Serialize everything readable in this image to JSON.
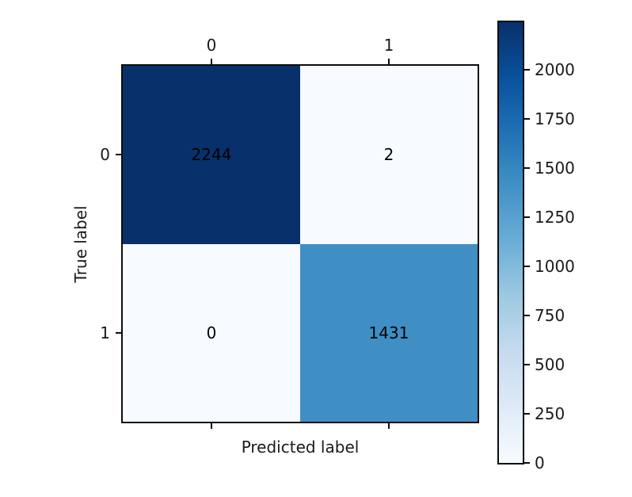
{
  "chart_data": {
    "type": "heatmap",
    "subtype": "confusion-matrix",
    "title": "",
    "xlabel": "Predicted label",
    "ylabel": "True label",
    "x_tick_labels": [
      "0",
      "1"
    ],
    "y_tick_labels": [
      "0",
      "1"
    ],
    "matrix": [
      [
        2244,
        2
      ],
      [
        0,
        1431
      ]
    ],
    "cell_colors": [
      [
        "#08306b",
        "#f7fbff"
      ],
      [
        "#f7fbff",
        "#3f8fc4"
      ]
    ],
    "cell_text_color": "#000000",
    "colormap": "Blues",
    "vmin": 0,
    "vmax": 2244,
    "colorbar_ticks": [
      "0",
      "250",
      "500",
      "750",
      "1000",
      "1250",
      "1500",
      "1750",
      "2000"
    ],
    "colorbar_tick_values": [
      0,
      250,
      500,
      750,
      1000,
      1250,
      1500,
      1750,
      2000
    ],
    "colorbar_gradient_bottom_to_top": [
      "#f7fbff",
      "#deebf7",
      "#c6dbef",
      "#9ecae1",
      "#6baed6",
      "#4292c6",
      "#2171b5",
      "#08519c",
      "#08306b"
    ],
    "spine_color": "#0d0d0d",
    "grid": false,
    "legend_position": "none"
  }
}
